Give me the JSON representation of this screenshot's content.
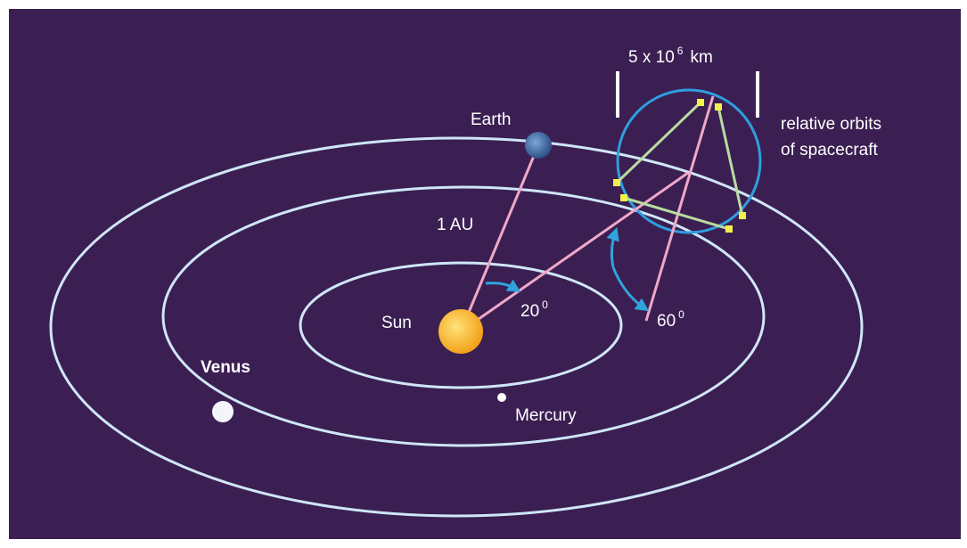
{
  "scale_label": {
    "base": "5 x 10",
    "exponent": "6",
    "unit": "km"
  },
  "orbit_note": {
    "line1": "relative orbits",
    "line2": "of spacecraft"
  },
  "bodies": {
    "earth": "Earth",
    "sun": "Sun",
    "venus": "Venus",
    "mercury": "Mercury"
  },
  "distance_label": "1 AU",
  "angles": [
    {
      "value": "20",
      "superscript": "0"
    },
    {
      "value": "60",
      "superscript": "0"
    }
  ]
}
